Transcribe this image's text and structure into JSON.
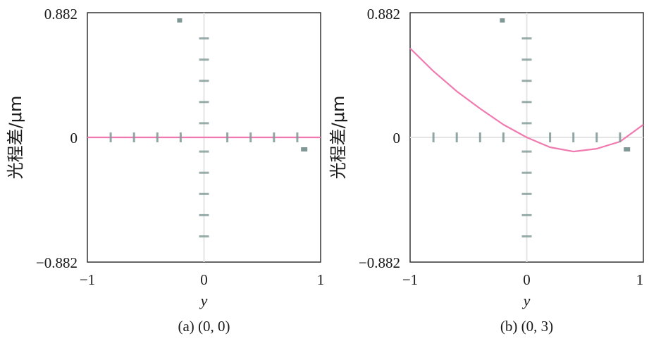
{
  "chart_data": [
    {
      "type": "line",
      "caption": "(a) (0, 0)",
      "xlabel": "y",
      "ylabel": "光程差/μm",
      "xlim": [
        -1,
        1
      ],
      "ylim": [
        -0.882,
        0.882
      ],
      "x_ticks": [
        "−1",
        "0",
        "1"
      ],
      "y_ticks": [
        "0.882",
        "0",
        "−0.882"
      ],
      "colors": {
        "curve": "#f07ab0",
        "ray_marks": "#7f9895",
        "axes": "#333333"
      },
      "series": [
        {
          "x": [
            -1,
            -0.5,
            0,
            0.5,
            1
          ],
          "y": [
            0,
            0,
            0,
            0,
            0
          ]
        }
      ]
    },
    {
      "type": "line",
      "caption": "(b) (0, 3)",
      "xlabel": "y",
      "ylabel": "光程差/μm",
      "xlim": [
        -1,
        1
      ],
      "ylim": [
        -0.882,
        0.882
      ],
      "x_ticks": [
        "−1",
        "0",
        "1"
      ],
      "y_ticks": [
        "0.882",
        "0",
        "−0.882"
      ],
      "colors": {
        "curve": "#f07ab0",
        "ray_marks": "#7f9895",
        "axes": "#333333"
      },
      "series": [
        {
          "x": [
            -1,
            -0.8,
            -0.6,
            -0.4,
            -0.2,
            0,
            0.2,
            0.4,
            0.6,
            0.8,
            1
          ],
          "y": [
            0.63,
            0.468,
            0.326,
            0.204,
            0.09,
            0,
            -0.07,
            -0.1,
            -0.08,
            -0.03,
            0.09
          ]
        }
      ]
    }
  ]
}
